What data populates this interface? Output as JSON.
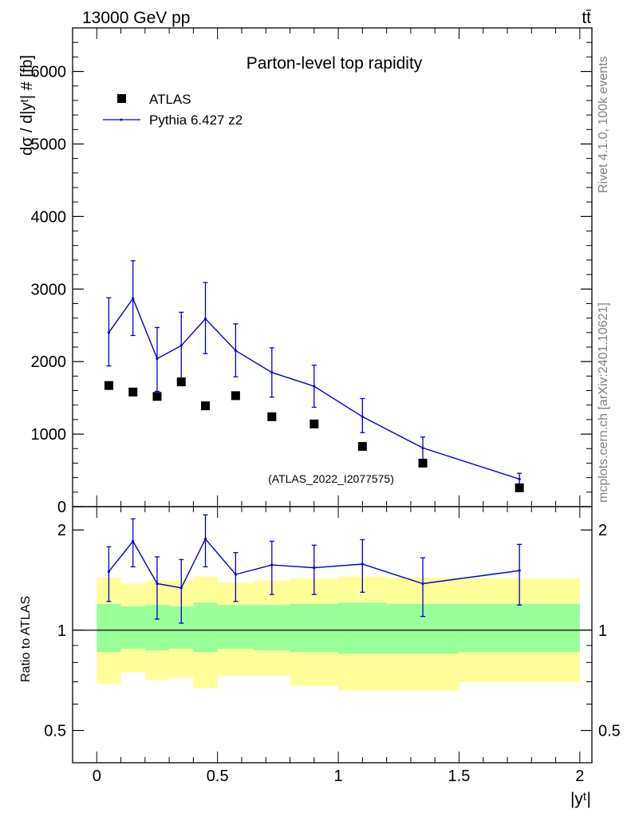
{
  "header": {
    "energy": "13000 GeV pp",
    "process": "tt̄"
  },
  "side_labels": {
    "rivet": "Rivet 4.1.0,  100k events",
    "mcplots": "mcplots.cern.ch [arXiv:2401.10621]"
  },
  "colors": {
    "mc": "#0000cc",
    "data": "#000000",
    "band_inner": "#99ff99",
    "band_outer": "#ffff99",
    "watermark": "#a0a0a0"
  },
  "chart_data": [
    {
      "id": "main",
      "type": "scatter",
      "title": "Parton-level top rapidity",
      "ylabel": "dσ / d|yᵗ| # [fb]",
      "xlabel": "",
      "xlim": [
        -0.1,
        2.05
      ],
      "ylim": [
        0,
        6600
      ],
      "yticks": [
        0,
        1000,
        2000,
        3000,
        4000,
        5000,
        6000
      ],
      "ytick_labels": [
        "0",
        "1000",
        "2000",
        "3000",
        "4000",
        "5000",
        "6000"
      ],
      "watermark": "(ATLAS_2022_I2077575)",
      "legend": [
        "ATLAS",
        "Pythia 6.427 z2"
      ],
      "legend_position": "top-left",
      "bin_edges": [
        0.0,
        0.1,
        0.2,
        0.3,
        0.4,
        0.5,
        0.65,
        0.8,
        1.0,
        1.2,
        1.5,
        2.0
      ],
      "x": [
        0.05,
        0.15,
        0.25,
        0.35,
        0.45,
        0.575,
        0.725,
        0.9,
        1.1,
        1.35,
        1.75
      ],
      "series": [
        {
          "name": "ATLAS",
          "marker": "square",
          "values": [
            1670,
            1580,
            1520,
            1720,
            1390,
            1530,
            1240,
            1140,
            830,
            600,
            260
          ]
        },
        {
          "name": "Pythia 6.427 z2",
          "marker": "line",
          "values": [
            2400,
            2870,
            2040,
            2220,
            2590,
            2150,
            1850,
            1660,
            1240,
            810,
            380
          ],
          "err_low": [
            460,
            510,
            450,
            460,
            480,
            360,
            340,
            290,
            220,
            160,
            80
          ],
          "err_high": [
            480,
            520,
            430,
            460,
            500,
            370,
            340,
            290,
            250,
            150,
            80
          ]
        }
      ]
    },
    {
      "id": "ratio",
      "type": "line",
      "ylabel": "Ratio to ATLAS",
      "xlabel": "|yᵗ|",
      "xlim": [
        -0.1,
        2.05
      ],
      "ylim": [
        0.4,
        2.35
      ],
      "yscale": "log",
      "xticks": [
        0,
        0.5,
        1,
        1.5,
        2
      ],
      "xtick_labels": [
        "0",
        "0.5",
        "1",
        "1.5",
        "2"
      ],
      "yticks": [
        0.5,
        1,
        2
      ],
      "ytick_labels": [
        "0.5",
        "1",
        "2"
      ],
      "bin_edges": [
        0.0,
        0.1,
        0.2,
        0.3,
        0.4,
        0.5,
        0.65,
        0.8,
        1.0,
        1.2,
        1.5,
        2.0
      ],
      "band_inner": {
        "low": [
          0.86,
          0.88,
          0.87,
          0.88,
          0.86,
          0.88,
          0.87,
          0.86,
          0.85,
          0.85,
          0.86
        ],
        "high": [
          1.2,
          1.18,
          1.19,
          1.18,
          1.21,
          1.19,
          1.19,
          1.2,
          1.21,
          1.2,
          1.2
        ]
      },
      "band_outer": {
        "low": [
          0.69,
          0.75,
          0.71,
          0.72,
          0.67,
          0.73,
          0.73,
          0.68,
          0.66,
          0.66,
          0.7
        ],
        "high": [
          1.44,
          1.38,
          1.41,
          1.41,
          1.45,
          1.39,
          1.41,
          1.43,
          1.45,
          1.44,
          1.43
        ]
      },
      "series": [
        {
          "name": "Pythia 6.427 z2",
          "values": [
            1.5,
            1.85,
            1.38,
            1.34,
            1.88,
            1.47,
            1.57,
            1.54,
            1.58,
            1.38,
            1.51
          ],
          "err_low": [
            0.28,
            0.3,
            0.3,
            0.29,
            0.33,
            0.25,
            0.29,
            0.26,
            0.28,
            0.28,
            0.32
          ],
          "err_high": [
            0.28,
            0.31,
            0.28,
            0.29,
            0.34,
            0.24,
            0.28,
            0.26,
            0.29,
            0.27,
            0.3
          ]
        }
      ]
    }
  ]
}
